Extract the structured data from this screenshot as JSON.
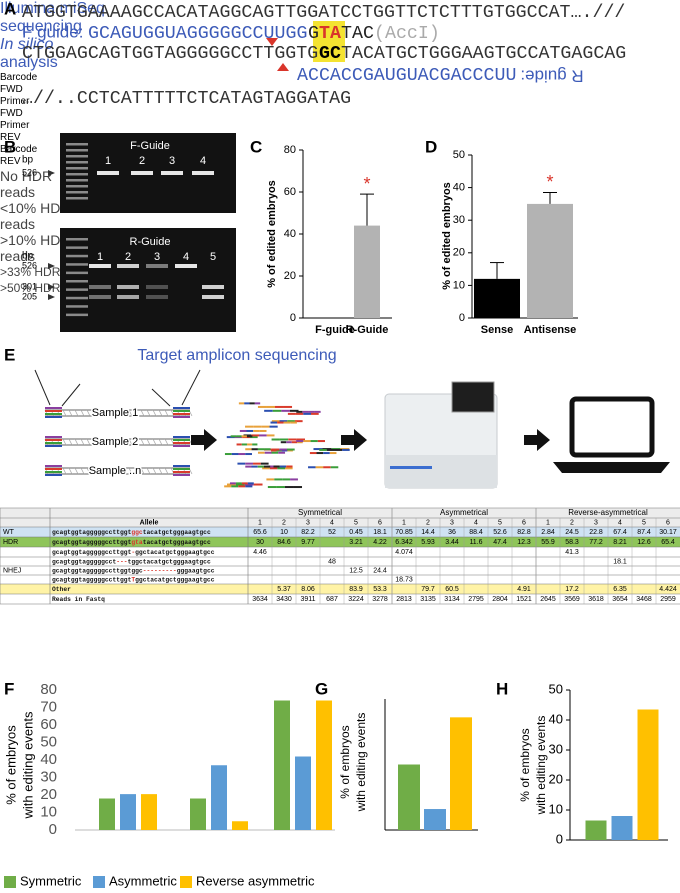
{
  "panel_a": {
    "label": "A",
    "line1": "ATGGTGAAAAGCCACATAGGCAGTTGGATCCTGGTTCTCTTTGTGGCCAT….///",
    "f_guide_label": "F guide:",
    "f_guide": "GCAGUGGUAGGGGGCCUUGG",
    "hdr_g": "G",
    "hdr_ta": "TA",
    "hdr_tac": "TAC",
    "site": "(AccI)",
    "line3_left": "CTGGAGCAGTGGTAGGGGGCCTTGGTG",
    "line3_box": "GC",
    "line3_right": "TACATGCTGGGAAGTGCCATGAGCAG",
    "r_guide": "ACCACCGAUGUACGACCCUU",
    "r_guide_label": "R guide:",
    "line5": "…//..CCTCATTTTTCTCATAGTAGGATAG"
  },
  "panel_b": {
    "label": "B",
    "top": {
      "unit": "bp",
      "title": "F-Guide",
      "lanes": [
        "1",
        "2",
        "3",
        "4"
      ],
      "markers": [
        526
      ]
    },
    "bottom": {
      "unit": "bp",
      "title": "R-Guide",
      "lanes": [
        "1",
        "2",
        "3",
        "4",
        "5"
      ],
      "markers": [
        526,
        301,
        205
      ]
    }
  },
  "panel_e": {
    "label": "E",
    "step1": "Target amplicon sequencing",
    "step2": "Illumina miSeq sequencing",
    "step3_em": "In silico",
    "step3": "analysis",
    "primers": [
      "Barcode FWD",
      "Primer FWD",
      "Primer REV",
      "Barcode REV"
    ],
    "samples": [
      "Sample 1",
      "Sample 2",
      "Sample ..n"
    ]
  },
  "table": {
    "allele_header": "Allele",
    "groups": [
      "Symmetrical",
      "Asymmetrical",
      "Reverse-asymmetrical"
    ],
    "subcolumns": [
      1,
      2,
      3,
      4,
      5,
      6
    ],
    "nhej_label": "NHEJ",
    "rows": [
      {
        "label": "WT",
        "color": "#cfe2f3",
        "allele": [
          "gcagtggtagggggccttggt",
          "ggc",
          "tacatgctgggaagtgcc"
        ],
        "values": [
          65.6,
          10,
          82.2,
          52,
          0.45,
          18.1,
          70.85,
          14.4,
          36,
          88.4,
          52.6,
          82.8,
          2.84,
          24.5,
          22.8,
          67.4,
          87.4,
          30.17
        ]
      },
      {
        "label": "HDR",
        "color": "#8fc55a",
        "allele": [
          "gcagtggtagggggccttggt",
          "gta",
          "tacatgctgggaagtgcc"
        ],
        "values": [
          30,
          84.6,
          9.77,
          null,
          3.21,
          4.22,
          6.342,
          5.93,
          3.44,
          11.6,
          47.4,
          12.3,
          55.9,
          58.3,
          77.2,
          8.21,
          12.6,
          65.4
        ]
      },
      {
        "allele": [
          "gcagtggtagggggccttggt",
          "-",
          "ggctacatgctgggaagtgcc"
        ],
        "values": [
          4.46,
          null,
          null,
          null,
          null,
          null,
          4.074,
          null,
          null,
          null,
          null,
          null,
          null,
          41.3,
          null,
          null,
          null,
          null
        ]
      },
      {
        "allele": [
          "gcagtggtagggggcct",
          "---",
          "tggctacatgctgggaagtgcc"
        ],
        "values": [
          null,
          null,
          null,
          48,
          null,
          null,
          null,
          null,
          null,
          null,
          null,
          null,
          null,
          null,
          null,
          18.1,
          null,
          null
        ]
      },
      {
        "allele": [
          "gcagtggtagggggccttggtggc",
          "---------",
          "gggaagtgcc"
        ],
        "values": [
          null,
          null,
          null,
          null,
          12.5,
          24.4,
          null,
          null,
          null,
          null,
          null,
          null,
          null,
          null,
          null,
          null,
          null,
          null
        ]
      },
      {
        "allele": [
          "gcagtggtagggggccttggt",
          "T",
          "ggctacatgctgggaagtgcc"
        ],
        "values": [
          null,
          null,
          null,
          null,
          null,
          null,
          18.73,
          null,
          null,
          null,
          null,
          null,
          null,
          null,
          null,
          null,
          null,
          null
        ]
      },
      {
        "color": "#fff3a6",
        "allele": [
          "Other"
        ],
        "values": [
          null,
          5.37,
          8.06,
          null,
          83.9,
          53.3,
          null,
          79.7,
          60.5,
          null,
          null,
          4.91,
          null,
          17.2,
          null,
          6.35,
          null,
          4.424
        ]
      },
      {
        "allele": [
          "Reads in Fastq"
        ],
        "values": [
          3634,
          3430,
          3911,
          687,
          3224,
          3278,
          2813,
          3135,
          3134,
          2795,
          2804,
          1521,
          2645,
          3569,
          3618,
          3654,
          3468,
          2959
        ]
      }
    ]
  },
  "chart_data": [
    {
      "type": "bar",
      "label": "C",
      "ylabel": "% of edited embryos",
      "categories": [
        "F-guide",
        "R-Guide"
      ],
      "values": [
        0,
        44
      ],
      "errors": [
        null,
        15
      ],
      "color": "#b3b3b3",
      "annotations": [
        null,
        "*"
      ],
      "ylim": [
        0,
        80
      ],
      "yticks": [
        0,
        20,
        40,
        60,
        80
      ]
    },
    {
      "type": "bar",
      "label": "D",
      "ylabel": "% of edited embryos",
      "categories": [
        "Sense",
        "Antisense"
      ],
      "values": [
        12,
        35
      ],
      "errors": [
        5,
        3.5
      ],
      "colors": [
        "#000000",
        "#b3b3b3"
      ],
      "annotations": [
        null,
        "*"
      ],
      "ylim": [
        0,
        50
      ],
      "yticks": [
        0,
        10,
        20,
        30,
        40,
        50
      ]
    },
    {
      "type": "bar",
      "label": "F",
      "ylabel": [
        "% of embryos",
        "with editing events"
      ],
      "categories": [
        "No HDR reads",
        "<10% HDR reads",
        ">10% HDR reads"
      ],
      "series": [
        {
          "name": "Symmetric",
          "color": "#70ad47",
          "values": [
            18,
            18,
            74
          ]
        },
        {
          "name": "Asymmetric",
          "color": "#5b9bd5",
          "values": [
            20.5,
            37,
            42
          ]
        },
        {
          "name": "Reverse asymmetric",
          "color": "#ffc000",
          "values": [
            20.5,
            5,
            74
          ]
        }
      ],
      "ylim": [
        0,
        80
      ],
      "yticks": [
        0,
        10,
        20,
        30,
        40,
        50,
        60,
        70,
        80
      ]
    },
    {
      "type": "bar",
      "label": "G",
      "ylabel": [
        "% of embryos",
        "with editing events"
      ],
      "categories": [
        ">33% HDR reads"
      ],
      "series": [
        {
          "color": "#70ad47",
          "values": [
            25
          ]
        },
        {
          "color": "#5b9bd5",
          "values": [
            8
          ]
        },
        {
          "color": "#ffc000",
          "values": [
            43
          ]
        }
      ],
      "ylim": [
        0,
        50
      ]
    },
    {
      "type": "bar",
      "label": "H",
      "ylabel": [
        "% of embryos",
        "with editing events"
      ],
      "categories": [
        ">50% HDR reads"
      ],
      "series": [
        {
          "color": "#70ad47",
          "values": [
            6.5
          ]
        },
        {
          "color": "#5b9bd5",
          "values": [
            8
          ]
        },
        {
          "color": "#ffc000",
          "values": [
            43.5
          ]
        }
      ],
      "ylim": [
        0,
        50
      ],
      "yticks": [
        0,
        10,
        20,
        30,
        40,
        50
      ]
    }
  ]
}
